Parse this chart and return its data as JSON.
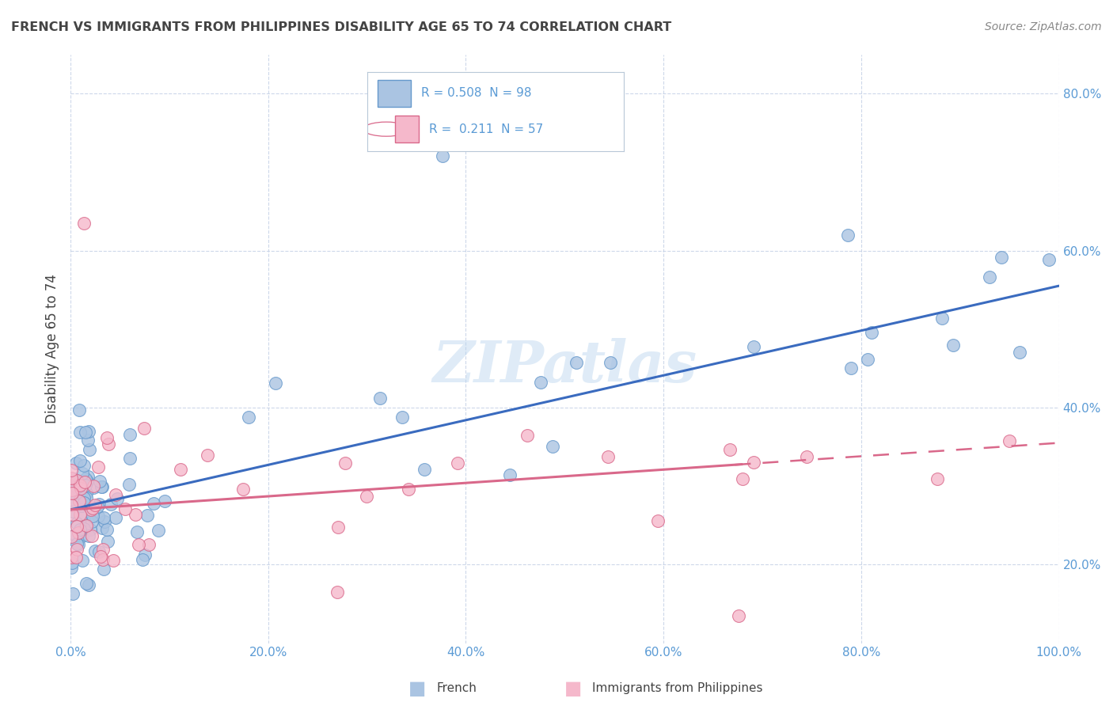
{
  "title": "FRENCH VS IMMIGRANTS FROM PHILIPPINES DISABILITY AGE 65 TO 74 CORRELATION CHART",
  "source": "Source: ZipAtlas.com",
  "ylabel": "Disability Age 65 to 74",
  "watermark": "ZIPatlas",
  "series": [
    {
      "label": "French",
      "R": 0.508,
      "N": 98,
      "color": "#aac4e2",
      "edge_color": "#6699cc",
      "line_color": "#3a6bbf",
      "line_solid_end": 1.0
    },
    {
      "label": "Immigrants from Philippines",
      "R": 0.211,
      "N": 57,
      "color": "#f5b8cb",
      "edge_color": "#d9688a",
      "line_color": "#d9688a",
      "line_solid_end": 0.68
    }
  ],
  "xlim": [
    0,
    1
  ],
  "ylim": [
    0.1,
    0.85
  ],
  "xticks": [
    0.0,
    0.2,
    0.4,
    0.6,
    0.8,
    1.0
  ],
  "yticks": [
    0.2,
    0.4,
    0.6,
    0.8
  ],
  "xticklabels": [
    "0.0%",
    "20.0%",
    "40.0%",
    "60.0%",
    "80.0%",
    "100.0%"
  ],
  "yticklabels": [
    "20.0%",
    "40.0%",
    "60.0%",
    "80.0%"
  ],
  "background_color": "#ffffff",
  "grid_color": "#c8d4e8",
  "title_color": "#444444",
  "tick_color": "#5b9bd5",
  "legend_color": "#5b9bd5",
  "fr_line_start_y": 0.27,
  "fr_line_end_y": 0.555,
  "ph_line_start_y": 0.27,
  "ph_line_end_y": 0.355
}
